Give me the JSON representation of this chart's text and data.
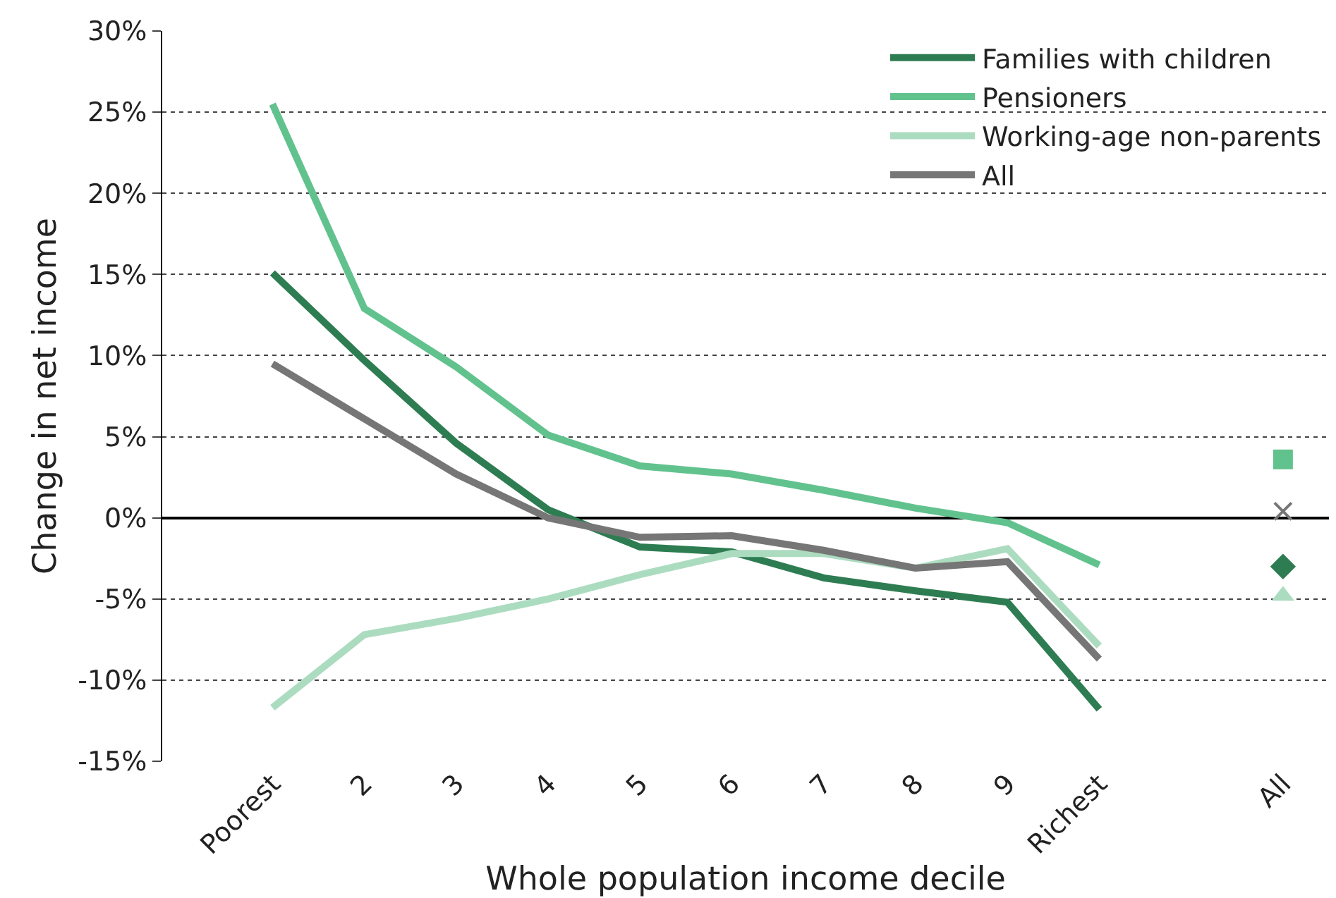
{
  "chart_data": {
    "type": "line",
    "xlabel": "Whole population income decile",
    "ylabel": "Change in net income",
    "categories": [
      "Poorest",
      "2",
      "3",
      "4",
      "5",
      "6",
      "7",
      "8",
      "9",
      "Richest",
      null,
      "All"
    ],
    "ylim": [
      -15,
      30
    ],
    "yticks": [
      {
        "value": -15,
        "label": "-15%"
      },
      {
        "value": -10,
        "label": "-10%"
      },
      {
        "value": -5,
        "label": "-5%"
      },
      {
        "value": 0,
        "label": "0%"
      },
      {
        "value": 5,
        "label": "5%"
      },
      {
        "value": 10,
        "label": "10%"
      },
      {
        "value": 15,
        "label": "15%"
      },
      {
        "value": 20,
        "label": "20%"
      },
      {
        "value": 25,
        "label": "25%"
      },
      {
        "value": 30,
        "label": "30%"
      }
    ],
    "grid": "y",
    "legend": "top right",
    "line_style": "solid",
    "series": [
      {
        "name": "Families with children",
        "color": "#2e7d52",
        "values": [
          15.1,
          9.7,
          4.6,
          0.5,
          -1.8,
          -2.1,
          -3.7,
          -4.5,
          -5.2,
          -11.8,
          null,
          null
        ]
      },
      {
        "name": "Pensioners",
        "color": "#62c28e",
        "values": [
          25.5,
          12.9,
          9.3,
          5.1,
          3.2,
          2.7,
          1.7,
          0.6,
          -0.3,
          -2.9,
          null,
          null
        ]
      },
      {
        "name": "Working-age non-parents",
        "color": "#acdcc0",
        "values": [
          -11.7,
          -7.2,
          -6.2,
          -5.0,
          -3.5,
          -2.2,
          -2.2,
          -3.1,
          -1.9,
          -7.9,
          null,
          null
        ]
      },
      {
        "name": "All",
        "color": "#767676",
        "values": [
          9.5,
          6.1,
          2.7,
          0.0,
          -1.2,
          -1.1,
          -2.0,
          -3.1,
          -2.7,
          -8.7,
          null,
          null
        ]
      },
      {
        "type": "scatter",
        "marker": "square",
        "color": "#62c28e",
        "values": [
          null,
          null,
          null,
          null,
          null,
          null,
          null,
          null,
          null,
          null,
          null,
          3.6
        ]
      },
      {
        "type": "scatter",
        "marker": "cross",
        "color": "#767676",
        "values": [
          null,
          null,
          null,
          null,
          null,
          null,
          null,
          null,
          null,
          null,
          null,
          0.4
        ]
      },
      {
        "type": "scatter",
        "marker": "diamond",
        "color": "#2e7d52",
        "values": [
          null,
          null,
          null,
          null,
          null,
          null,
          null,
          null,
          null,
          null,
          null,
          -3.0
        ]
      },
      {
        "type": "scatter",
        "marker": "triangle",
        "color": "#acdcc0",
        "values": [
          null,
          null,
          null,
          null,
          null,
          null,
          null,
          null,
          null,
          null,
          null,
          -4.8
        ]
      }
    ]
  }
}
